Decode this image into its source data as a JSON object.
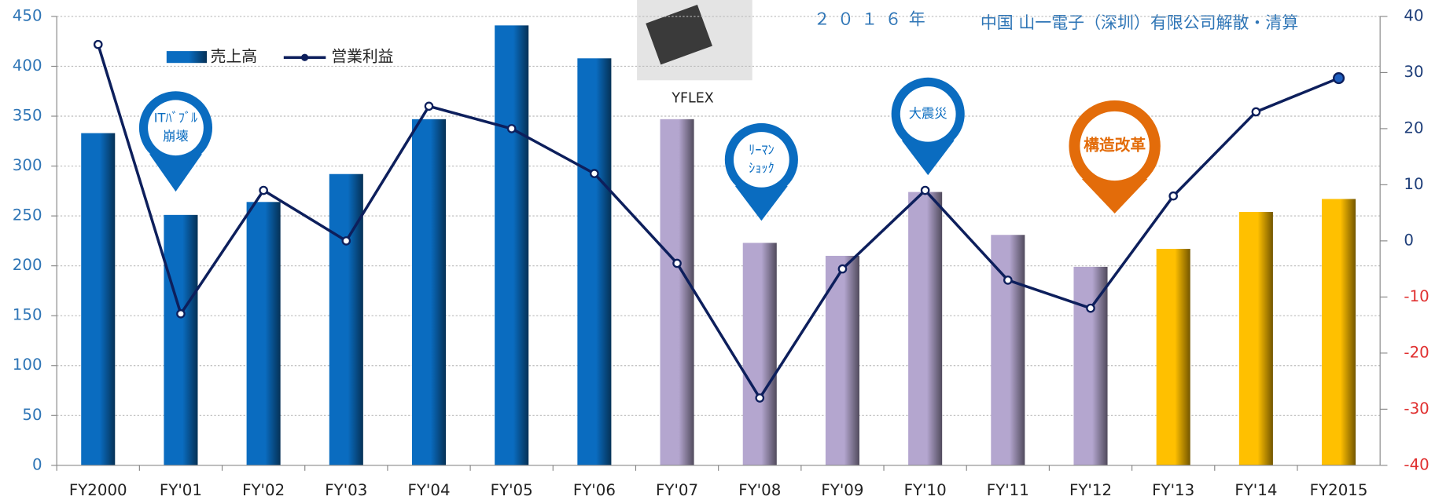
{
  "chart_data": {
    "type": "bar_line",
    "categories": [
      "FY2000",
      "FY'01",
      "FY'02",
      "FY'03",
      "FY'04",
      "FY'05",
      "FY'06",
      "FY'07",
      "FY'08",
      "FY'09",
      "FY'10",
      "FY'11",
      "FY'12",
      "FY'13",
      "FY'14",
      "FY2015"
    ],
    "series": [
      {
        "name": "売上高",
        "type": "bar",
        "color": "#0a6cc0",
        "colors": [
          "#0a6cc0",
          "#0a6cc0",
          "#0a6cc0",
          "#0a6cc0",
          "#0a6cc0",
          "#0a6cc0",
          "#0a6cc0",
          "#b4a6cf",
          "#b4a6cf",
          "#b4a6cf",
          "#b4a6cf",
          "#b4a6cf",
          "#b4a6cf",
          "#ffc000",
          "#ffc000",
          "#ffc000"
        ],
        "values": [
          333,
          251,
          264,
          292,
          347,
          441,
          408,
          347,
          223,
          210,
          274,
          231,
          199,
          217,
          254,
          267
        ]
      },
      {
        "name": "営業利益",
        "type": "line",
        "axis": "y2",
        "color": "#0d1f5c",
        "values": [
          35,
          -13,
          9,
          0,
          24,
          20,
          12,
          -4,
          -28,
          -5,
          9,
          -7,
          -12,
          8,
          23,
          29
        ]
      }
    ],
    "ylim": [
      0,
      450
    ],
    "yticks": [
      0,
      50,
      100,
      150,
      200,
      250,
      300,
      350,
      400,
      450
    ],
    "y2lim": [
      -40,
      40
    ],
    "y2ticks": [
      -40,
      -30,
      -20,
      -10,
      0,
      10,
      20,
      30,
      40
    ],
    "grid": true,
    "annotations": [
      {
        "lines": [
          "ITﾊﾞﾌﾞﾙ",
          "崩壊"
        ],
        "color": "#0a6cc0"
      },
      {
        "lines": [
          "ﾘｰﾏﾝ",
          "ｼｮｯｸ"
        ],
        "color": "#0a6cc0"
      },
      {
        "lines": [
          "大震災"
        ],
        "color": "#0a6cc0"
      },
      {
        "lines": [
          "構造改革"
        ],
        "color": "#e36c0a"
      }
    ],
    "photo_label": "YFLEX",
    "event_year": "２０１６年",
    "event_text": "中国 山一電子（深圳）有限公司解散・清算"
  }
}
